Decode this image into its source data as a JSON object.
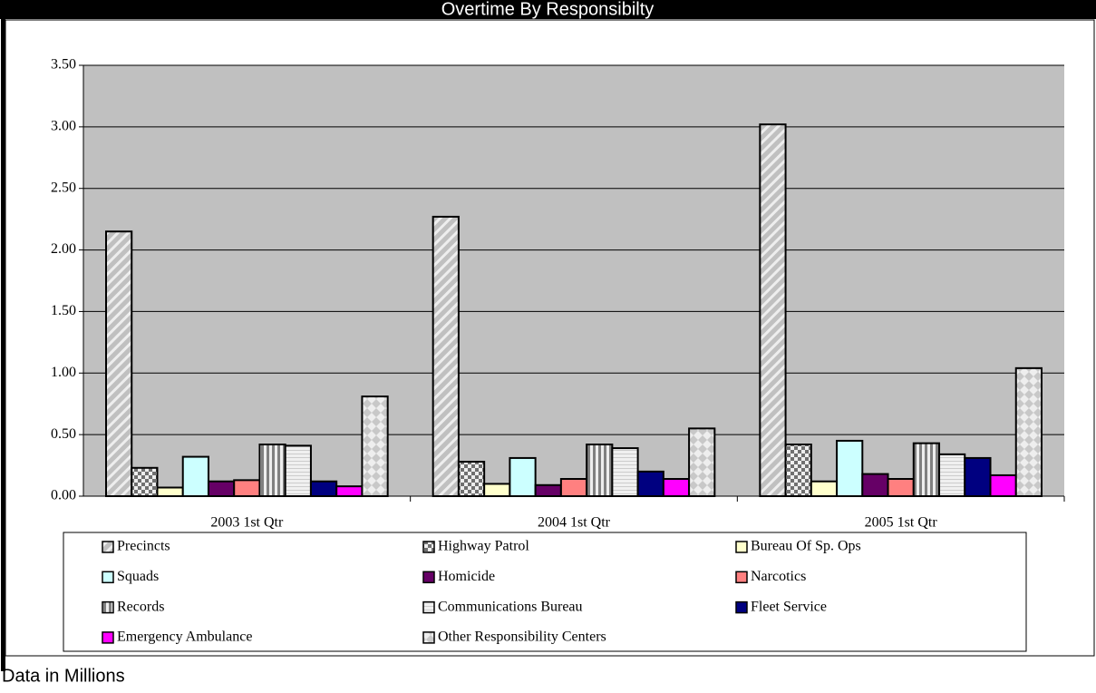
{
  "chart_data": {
    "type": "bar",
    "title": "Overtime By Responsibilty",
    "note": "Data in Millions",
    "categories": [
      "2003 1st Qtr",
      "2004 1st Qtr",
      "2005 1st Qtr"
    ],
    "ylim": [
      0,
      3.5
    ],
    "yticks": [
      {
        "value": 0,
        "label": "0.00"
      },
      {
        "value": 0.5,
        "label": "0.50"
      },
      {
        "value": 1,
        "label": "1.00"
      },
      {
        "value": 1.5,
        "label": "1.50"
      },
      {
        "value": 2,
        "label": "2.00"
      },
      {
        "value": 2.5,
        "label": "2.50"
      },
      {
        "value": 3,
        "label": "3.00"
      },
      {
        "value": 3.5,
        "label": "3.50"
      }
    ],
    "grid": true,
    "series": [
      {
        "name": "Precincts",
        "color": "#c0c0c0",
        "pattern": "diagonal",
        "values": [
          2.15,
          2.27,
          3.02
        ]
      },
      {
        "name": "Highway Patrol",
        "color": "#808080",
        "pattern": "checker",
        "values": [
          0.23,
          0.28,
          0.42
        ]
      },
      {
        "name": "Bureau Of Sp. Ops",
        "color": "#ffffcc",
        "values": [
          0.07,
          0.1,
          0.12
        ]
      },
      {
        "name": "Squads",
        "color": "#ccffff",
        "values": [
          0.32,
          0.31,
          0.45
        ]
      },
      {
        "name": "Homicide",
        "color": "#660066",
        "values": [
          0.12,
          0.09,
          0.18
        ]
      },
      {
        "name": "Narcotics",
        "color": "#ff8080",
        "values": [
          0.13,
          0.14,
          0.14
        ]
      },
      {
        "name": "Records",
        "color": "#808080",
        "pattern": "vertical",
        "values": [
          0.42,
          0.42,
          0.43
        ]
      },
      {
        "name": "Communications Bureau",
        "color": "#e0e0e0",
        "pattern": "horizontal",
        "values": [
          0.41,
          0.39,
          0.34
        ]
      },
      {
        "name": "Fleet Service",
        "color": "#000080",
        "values": [
          0.12,
          0.2,
          0.31
        ]
      },
      {
        "name": "Emergency Ambulance",
        "color": "#ff00ff",
        "values": [
          0.08,
          0.14,
          0.17
        ]
      },
      {
        "name": "Other Responsibility Centers",
        "color": "#c0c0c0",
        "pattern": "diamond",
        "values": [
          0.81,
          0.55,
          1.04
        ]
      }
    ]
  }
}
